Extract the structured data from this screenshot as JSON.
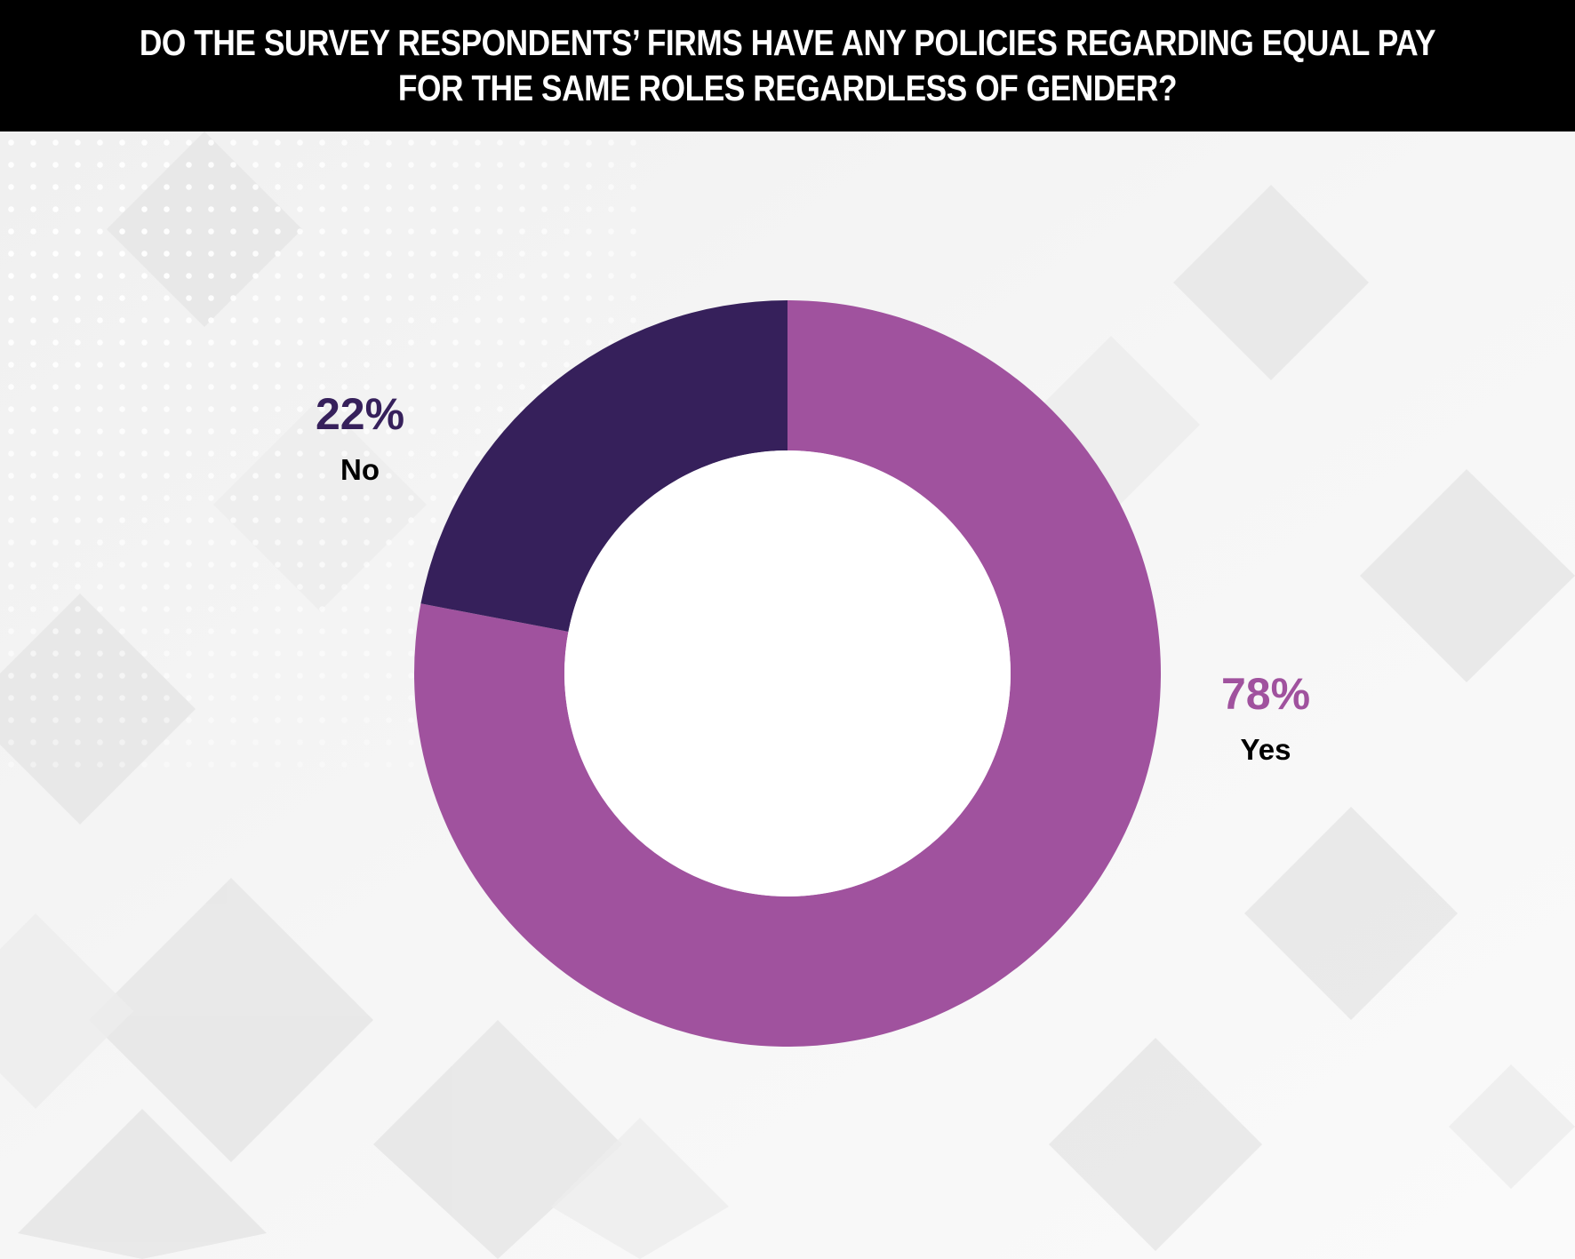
{
  "chart_data": {
    "type": "pie",
    "variant": "donut",
    "title": "DO THE SURVEY RESPONDENTS’ FIRMS HAVE ANY POLICIES REGARDING EQUAL PAY FOR THE SAME ROLES REGARDLESS OF GENDER?",
    "slices": [
      {
        "label": "Yes",
        "value": 78,
        "value_label": "78%",
        "color": "#a0529e"
      },
      {
        "label": "No",
        "value": 22,
        "value_label": "22%",
        "color": "#36205b"
      }
    ],
    "legend": "none",
    "data_labels": "outside"
  },
  "colors": {
    "header_background": "#000000",
    "header_text": "#ffffff",
    "label_text": "#000000"
  }
}
